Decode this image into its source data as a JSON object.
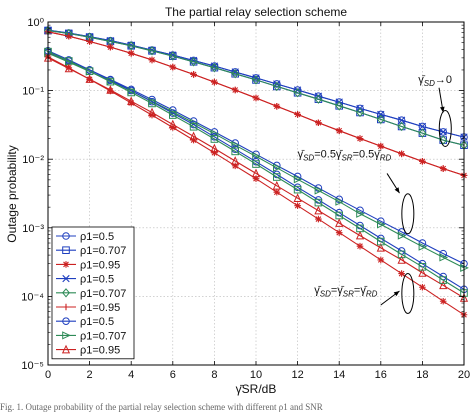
{
  "chart_data": {
    "type": "line",
    "title": "The partial relay selection scheme",
    "xlabel": "γ̄SR/dB",
    "ylabel": "Outage probability",
    "yscale": "log",
    "xlim": [
      0,
      20
    ],
    "ylim": [
      1e-05,
      1
    ],
    "grid": true,
    "legend_position": "bottom-left",
    "x_ticks": [
      "0",
      "2",
      "4",
      "6",
      "8",
      "10",
      "12",
      "14",
      "16",
      "18",
      "20"
    ],
    "y_ticks": [
      "10⁰",
      "10⁻¹",
      "10⁻²",
      "10⁻³",
      "10⁻⁴",
      "10⁻⁵"
    ],
    "x": [
      0,
      1,
      2,
      3,
      4,
      5,
      6,
      7,
      8,
      9,
      10,
      11,
      12,
      13,
      14,
      15,
      16,
      17,
      18,
      19,
      20
    ],
    "series": [
      {
        "name": "ρ1=0.5",
        "color": "#1f3fbf",
        "marker": "circle",
        "values": [
          0.76,
          0.69,
          0.61,
          0.535,
          0.46,
          0.39,
          0.33,
          0.275,
          0.228,
          0.187,
          0.153,
          0.125,
          0.102,
          0.083,
          0.068,
          0.055,
          0.045,
          0.037,
          0.03,
          0.025,
          0.021
        ]
      },
      {
        "name": "ρ1=0.707",
        "color": "#1f3fbf",
        "marker": "square",
        "values": [
          0.75,
          0.68,
          0.6,
          0.522,
          0.45,
          0.38,
          0.318,
          0.263,
          0.216,
          0.176,
          0.143,
          0.115,
          0.093,
          0.075,
          0.06,
          0.048,
          0.038,
          0.03,
          0.024,
          0.019,
          0.016
        ]
      },
      {
        "name": "ρ1=0.95",
        "color": "#cc2222",
        "marker": "star",
        "values": [
          0.72,
          0.62,
          0.52,
          0.43,
          0.35,
          0.28,
          0.22,
          0.172,
          0.133,
          0.102,
          0.078,
          0.059,
          0.045,
          0.034,
          0.026,
          0.02,
          0.0155,
          0.012,
          0.0093,
          0.0073,
          0.0058
        ]
      },
      {
        "name": "ρ1=0.5",
        "color": "#1f3fbf",
        "marker": "x",
        "values": [
          0.76,
          0.69,
          0.61,
          0.535,
          0.46,
          0.39,
          0.33,
          0.275,
          0.228,
          0.187,
          0.153,
          0.125,
          0.102,
          0.083,
          0.068,
          0.055,
          0.045,
          0.037,
          0.03,
          0.025,
          0.021
        ]
      },
      {
        "name": "ρ1=0.707",
        "color": "#2e8b57",
        "marker": "diamond",
        "values": [
          0.75,
          0.68,
          0.6,
          0.522,
          0.45,
          0.38,
          0.318,
          0.263,
          0.216,
          0.176,
          0.143,
          0.115,
          0.093,
          0.075,
          0.06,
          0.048,
          0.038,
          0.03,
          0.024,
          0.019,
          0.016
        ]
      },
      {
        "name": "ρ1=0.95",
        "color": "#cc2222",
        "marker": "plus",
        "values": [
          0.72,
          0.62,
          0.52,
          0.43,
          0.35,
          0.28,
          0.22,
          0.172,
          0.133,
          0.102,
          0.078,
          0.059,
          0.045,
          0.034,
          0.026,
          0.02,
          0.0155,
          0.012,
          0.0093,
          0.0073,
          0.0058
        ]
      },
      {
        "name": "ρ1=0.5",
        "color": "#1f3fbf",
        "marker": "circle",
        "values": [
          0.36,
          0.27,
          0.2,
          0.145,
          0.104,
          0.074,
          0.052,
          0.036,
          0.025,
          0.0172,
          0.0118,
          0.0081,
          0.0056,
          0.0038,
          0.0026,
          0.0018,
          0.00125,
          0.00087,
          0.0006,
          0.00042,
          0.0003
        ]
      },
      {
        "name": "ρ1=0.707",
        "color": "#2e8b57",
        "marker": "triangle-right",
        "values": [
          0.35,
          0.26,
          0.19,
          0.138,
          0.099,
          0.07,
          0.049,
          0.034,
          0.0235,
          0.016,
          0.011,
          0.0075,
          0.0051,
          0.0035,
          0.0024,
          0.0016,
          0.00112,
          0.00077,
          0.00053,
          0.00037,
          0.00026
        ]
      },
      {
        "name": "ρ1=0.95",
        "color": "#cc2222",
        "marker": "triangle-up",
        "values": [
          0.3,
          0.21,
          0.147,
          0.102,
          0.07,
          0.048,
          0.032,
          0.0215,
          0.0143,
          0.0094,
          0.0062,
          0.0041,
          0.0027,
          0.00178,
          0.00117,
          0.00077,
          0.00051,
          0.00034,
          0.00022,
          0.000145,
          9.5e-05
        ]
      }
    ],
    "additional_curves": [
      {
        "color": "#1f3fbf",
        "marker": "circle",
        "values": [
          0.38,
          0.28,
          0.2,
          0.142,
          0.1,
          0.069,
          0.047,
          0.032,
          0.0212,
          0.014,
          0.0092,
          0.006,
          0.0039,
          0.00255,
          0.00166,
          0.00108,
          0.0007,
          0.00046,
          0.0003,
          0.000195,
          0.000127
        ]
      },
      {
        "color": "#2e8b57",
        "marker": "square",
        "values": [
          0.37,
          0.27,
          0.192,
          0.135,
          0.094,
          0.065,
          0.044,
          0.0297,
          0.0197,
          0.013,
          0.0085,
          0.0055,
          0.0036,
          0.00233,
          0.00151,
          0.00098,
          0.00063,
          0.00041,
          0.00027,
          0.000173,
          0.000112
        ]
      },
      {
        "color": "#cc2222",
        "marker": "star",
        "values": [
          0.31,
          0.215,
          0.146,
          0.099,
          0.066,
          0.044,
          0.029,
          0.019,
          0.0124,
          0.008,
          0.0052,
          0.0033,
          0.0021,
          0.00134,
          0.00085,
          0.00054,
          0.00034,
          0.000215,
          0.000136,
          8.5e-05,
          5.4e-05
        ]
      }
    ],
    "annotations": [
      {
        "text": "γ̄SD→0",
        "x": 17.8,
        "y": 0.13
      },
      {
        "text": "γ̄SD=0.5γ̄SR=0.5γ̄RD",
        "x": 12,
        "y": 0.0105
      },
      {
        "text": "γ̄SD=γ̄SR=γ̄RD",
        "x": 12.8,
        "y": 0.00011
      }
    ]
  },
  "caption": "Fig. 1. Outage probability of the partial relay selection scheme with different ρ1 and SNR"
}
